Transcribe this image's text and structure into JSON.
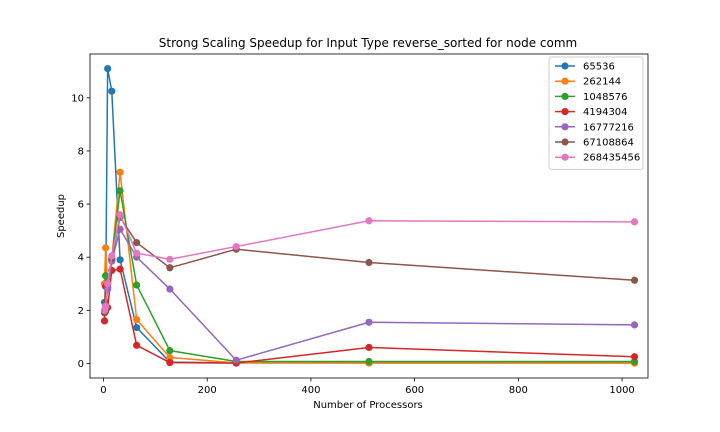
{
  "chart_data": {
    "type": "line",
    "title": "Strong Scaling Speedup for Input Type reverse_sorted for node comm",
    "xlabel": "Number of Processors",
    "ylabel": "Speedup",
    "xlim": [
      -26,
      1050
    ],
    "ylim": [
      -0.55,
      11.65
    ],
    "xticks": [
      0,
      200,
      400,
      600,
      800,
      1000
    ],
    "yticks": [
      0,
      2,
      4,
      6,
      8,
      10
    ],
    "grid": false,
    "legend_position": "top-right",
    "x": [
      2,
      4,
      8,
      16,
      32,
      64,
      128,
      256,
      512,
      1024
    ],
    "series": [
      {
        "name": "65536",
        "color": "#1f77b4",
        "values": [
          2.3,
          2.05,
          11.1,
          10.25,
          3.9,
          1.35,
          0.05,
          0.02,
          0.02,
          0.02
        ]
      },
      {
        "name": "262144",
        "color": "#ff7f0e",
        "values": [
          3.0,
          4.35,
          2.9,
          3.95,
          7.2,
          1.65,
          0.22,
          0.02,
          0.01,
          0.01
        ]
      },
      {
        "name": "1048576",
        "color": "#2ca02c",
        "values": [
          2.0,
          3.3,
          2.85,
          3.9,
          6.5,
          2.95,
          0.48,
          0.07,
          0.07,
          0.07
        ]
      },
      {
        "name": "4194304",
        "color": "#d62728",
        "values": [
          1.6,
          2.9,
          2.1,
          3.5,
          3.55,
          0.68,
          0.03,
          0.01,
          0.6,
          0.25
        ]
      },
      {
        "name": "16777216",
        "color": "#9467bd",
        "values": [
          1.95,
          2.1,
          2.8,
          3.85,
          5.05,
          4.0,
          2.8,
          0.12,
          1.55,
          1.45
        ]
      },
      {
        "name": "67108864",
        "color": "#8c564b",
        "values": [
          1.9,
          1.95,
          3.0,
          3.95,
          5.5,
          4.55,
          3.6,
          4.3,
          3.8,
          3.13
        ]
      },
      {
        "name": "268435456",
        "color": "#e377c2",
        "values": [
          2.0,
          2.15,
          3.0,
          4.05,
          5.6,
          4.15,
          3.92,
          4.4,
          5.37,
          5.33
        ]
      }
    ]
  }
}
